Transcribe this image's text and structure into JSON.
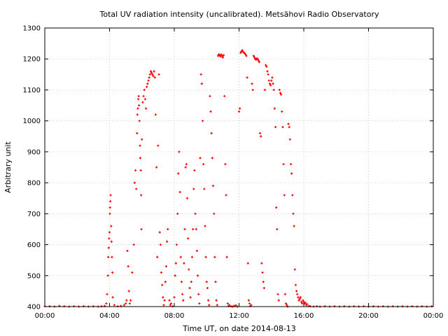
{
  "chart_data": {
    "type": "scatter",
    "title": "Total UV radiation intensity (uncalibrated). Metsähovi Radio Observatory",
    "xlabel": "Time UT, on date 2014-08-13",
    "ylabel": "Arbitrary unit",
    "xlim": [
      0,
      24
    ],
    "ylim": [
      400,
      1300
    ],
    "grid": true,
    "legend": "none",
    "marker_color": "#ff0000",
    "x_ticks": [
      {
        "value": 0,
        "label": "00:00"
      },
      {
        "value": 4,
        "label": "04:00"
      },
      {
        "value": 8,
        "label": "08:00"
      },
      {
        "value": 12,
        "label": "12:00"
      },
      {
        "value": 16,
        "label": "16:00"
      },
      {
        "value": 20,
        "label": "20:00"
      },
      {
        "value": 24,
        "label": "00:00"
      }
    ],
    "y_ticks": [
      {
        "value": 400,
        "label": "400"
      },
      {
        "value": 500,
        "label": "500"
      },
      {
        "value": 600,
        "label": "600"
      },
      {
        "value": 700,
        "label": "700"
      },
      {
        "value": 800,
        "label": "800"
      },
      {
        "value": 900,
        "label": "900"
      },
      {
        "value": 1000,
        "label": "1000"
      },
      {
        "value": 1100,
        "label": "1100"
      },
      {
        "value": 1200,
        "label": "1200"
      },
      {
        "value": 1300,
        "label": "1300"
      }
    ],
    "points": [
      [
        0.0,
        401
      ],
      [
        0.3,
        401
      ],
      [
        0.6,
        400
      ],
      [
        0.9,
        402
      ],
      [
        1.2,
        401
      ],
      [
        1.5,
        400
      ],
      [
        1.8,
        401
      ],
      [
        2.1,
        400
      ],
      [
        2.4,
        401
      ],
      [
        2.7,
        400
      ],
      [
        3.0,
        401
      ],
      [
        3.3,
        400
      ],
      [
        3.5,
        401
      ],
      [
        3.7,
        402
      ],
      [
        3.8,
        410
      ],
      [
        3.85,
        440
      ],
      [
        3.9,
        500
      ],
      [
        3.92,
        560
      ],
      [
        3.95,
        590
      ],
      [
        3.97,
        620
      ],
      [
        4.0,
        640
      ],
      [
        4.02,
        700
      ],
      [
        4.03,
        720
      ],
      [
        4.05,
        740
      ],
      [
        4.07,
        760
      ],
      [
        4.1,
        660
      ],
      [
        4.12,
        610
      ],
      [
        4.15,
        560
      ],
      [
        4.18,
        510
      ],
      [
        4.2,
        430
      ],
      [
        4.3,
        405
      ],
      [
        4.5,
        401
      ],
      [
        4.7,
        402
      ],
      [
        4.9,
        405
      ],
      [
        5.0,
        410
      ],
      [
        5.05,
        420
      ],
      [
        5.1,
        580
      ],
      [
        5.15,
        530
      ],
      [
        5.2,
        450
      ],
      [
        5.25,
        410
      ],
      [
        5.3,
        420
      ],
      [
        5.4,
        510
      ],
      [
        5.5,
        600
      ],
      [
        5.55,
        800
      ],
      [
        5.6,
        840
      ],
      [
        5.65,
        780
      ],
      [
        5.7,
        960
      ],
      [
        5.72,
        1020
      ],
      [
        5.75,
        1040
      ],
      [
        5.78,
        1070
      ],
      [
        5.8,
        1080
      ],
      [
        5.82,
        1050
      ],
      [
        5.85,
        1000
      ],
      [
        5.88,
        920
      ],
      [
        5.9,
        880
      ],
      [
        5.93,
        840
      ],
      [
        5.95,
        760
      ],
      [
        5.97,
        650
      ],
      [
        6.0,
        940
      ],
      [
        6.05,
        1060
      ],
      [
        6.1,
        1080
      ],
      [
        6.15,
        1100
      ],
      [
        6.2,
        1070
      ],
      [
        6.25,
        1040
      ],
      [
        6.3,
        1110
      ],
      [
        6.35,
        1120
      ],
      [
        6.4,
        1130
      ],
      [
        6.45,
        1140
      ],
      [
        6.5,
        1150
      ],
      [
        6.55,
        1160
      ],
      [
        6.6,
        1155
      ],
      [
        6.65,
        1150
      ],
      [
        6.7,
        1145
      ],
      [
        6.75,
        1160
      ],
      [
        6.8,
        1140
      ],
      [
        6.85,
        1020
      ],
      [
        6.9,
        850
      ],
      [
        6.95,
        560
      ],
      [
        7.0,
        920
      ],
      [
        7.05,
        1150
      ],
      [
        7.1,
        640
      ],
      [
        7.15,
        600
      ],
      [
        7.2,
        510
      ],
      [
        7.25,
        470
      ],
      [
        7.3,
        430
      ],
      [
        7.35,
        405
      ],
      [
        7.4,
        420
      ],
      [
        7.45,
        480
      ],
      [
        7.5,
        530
      ],
      [
        7.55,
        610
      ],
      [
        7.6,
        650
      ],
      [
        7.7,
        420
      ],
      [
        7.75,
        405
      ],
      [
        7.8,
        410
      ],
      [
        7.9,
        401
      ],
      [
        8.0,
        430
      ],
      [
        8.05,
        500
      ],
      [
        8.1,
        540
      ],
      [
        8.15,
        600
      ],
      [
        8.2,
        700
      ],
      [
        8.25,
        830
      ],
      [
        8.3,
        900
      ],
      [
        8.35,
        770
      ],
      [
        8.4,
        560
      ],
      [
        8.45,
        480
      ],
      [
        8.5,
        440
      ],
      [
        8.55,
        420
      ],
      [
        8.6,
        540
      ],
      [
        8.65,
        650
      ],
      [
        8.7,
        850
      ],
      [
        8.75,
        860
      ],
      [
        8.8,
        750
      ],
      [
        8.85,
        620
      ],
      [
        8.9,
        520
      ],
      [
        8.95,
        460
      ],
      [
        9.0,
        430
      ],
      [
        9.05,
        480
      ],
      [
        9.1,
        560
      ],
      [
        9.15,
        650
      ],
      [
        9.2,
        780
      ],
      [
        9.25,
        840
      ],
      [
        9.3,
        700
      ],
      [
        9.35,
        650
      ],
      [
        9.4,
        580
      ],
      [
        9.45,
        500
      ],
      [
        9.5,
        440
      ],
      [
        9.55,
        410
      ],
      [
        9.6,
        880
      ],
      [
        9.65,
        1150
      ],
      [
        9.7,
        1120
      ],
      [
        9.75,
        1000
      ],
      [
        9.8,
        860
      ],
      [
        9.85,
        780
      ],
      [
        9.9,
        660
      ],
      [
        9.95,
        560
      ],
      [
        10.0,
        480
      ],
      [
        10.05,
        460
      ],
      [
        10.1,
        420
      ],
      [
        10.15,
        405
      ],
      [
        10.2,
        1080
      ],
      [
        10.25,
        1030
      ],
      [
        10.3,
        960
      ],
      [
        10.35,
        880
      ],
      [
        10.4,
        790
      ],
      [
        10.45,
        700
      ],
      [
        10.5,
        560
      ],
      [
        10.55,
        480
      ],
      [
        10.6,
        420
      ],
      [
        10.65,
        405
      ],
      [
        10.7,
        1210
      ],
      [
        10.75,
        1215
      ],
      [
        10.8,
        1212
      ],
      [
        10.85,
        1208
      ],
      [
        10.9,
        1214
      ],
      [
        10.95,
        1210
      ],
      [
        11.0,
        1205
      ],
      [
        11.05,
        1212
      ],
      [
        11.1,
        1080
      ],
      [
        11.15,
        860
      ],
      [
        11.2,
        760
      ],
      [
        11.25,
        560
      ],
      [
        11.3,
        410
      ],
      [
        11.35,
        402
      ],
      [
        11.4,
        405
      ],
      [
        11.5,
        401
      ],
      [
        11.6,
        400
      ],
      [
        11.7,
        402
      ],
      [
        11.8,
        404
      ],
      [
        11.9,
        400
      ],
      [
        12.0,
        1030
      ],
      [
        12.05,
        1040
      ],
      [
        12.1,
        1220
      ],
      [
        12.15,
        1225
      ],
      [
        12.2,
        1228
      ],
      [
        12.25,
        1223
      ],
      [
        12.3,
        1220
      ],
      [
        12.35,
        1218
      ],
      [
        12.4,
        1215
      ],
      [
        12.45,
        1210
      ],
      [
        12.5,
        1140
      ],
      [
        12.55,
        540
      ],
      [
        12.6,
        420
      ],
      [
        12.65,
        410
      ],
      [
        12.7,
        402
      ],
      [
        12.75,
        405
      ],
      [
        12.8,
        1120
      ],
      [
        12.85,
        1100
      ],
      [
        12.9,
        1210
      ],
      [
        12.95,
        1205
      ],
      [
        13.0,
        1200
      ],
      [
        13.05,
        1198
      ],
      [
        13.1,
        1202
      ],
      [
        13.15,
        1200
      ],
      [
        13.2,
        1195
      ],
      [
        13.25,
        1190
      ],
      [
        13.3,
        960
      ],
      [
        13.35,
        950
      ],
      [
        13.4,
        540
      ],
      [
        13.45,
        510
      ],
      [
        13.5,
        480
      ],
      [
        13.55,
        460
      ],
      [
        13.6,
        1100
      ],
      [
        13.65,
        1180
      ],
      [
        13.7,
        1175
      ],
      [
        13.75,
        1160
      ],
      [
        13.8,
        1150
      ],
      [
        13.85,
        1130
      ],
      [
        13.9,
        1120
      ],
      [
        13.95,
        1115
      ],
      [
        14.0,
        1130
      ],
      [
        14.05,
        1140
      ],
      [
        14.1,
        1120
      ],
      [
        14.15,
        1100
      ],
      [
        14.2,
        1040
      ],
      [
        14.25,
        980
      ],
      [
        14.3,
        720
      ],
      [
        14.35,
        650
      ],
      [
        14.4,
        440
      ],
      [
        14.45,
        420
      ],
      [
        14.5,
        1100
      ],
      [
        14.55,
        1090
      ],
      [
        14.6,
        1085
      ],
      [
        14.65,
        1030
      ],
      [
        14.7,
        980
      ],
      [
        14.75,
        860
      ],
      [
        14.8,
        760
      ],
      [
        14.85,
        440
      ],
      [
        14.9,
        410
      ],
      [
        14.95,
        405
      ],
      [
        15.0,
        400
      ],
      [
        15.05,
        990
      ],
      [
        15.1,
        980
      ],
      [
        15.15,
        940
      ],
      [
        15.2,
        860
      ],
      [
        15.25,
        830
      ],
      [
        15.3,
        760
      ],
      [
        15.35,
        700
      ],
      [
        15.4,
        660
      ],
      [
        15.45,
        520
      ],
      [
        15.5,
        470
      ],
      [
        15.55,
        450
      ],
      [
        15.6,
        440
      ],
      [
        15.65,
        430
      ],
      [
        15.7,
        420
      ],
      [
        15.75,
        425
      ],
      [
        15.8,
        430
      ],
      [
        15.85,
        415
      ],
      [
        15.9,
        410
      ],
      [
        15.95,
        420
      ],
      [
        16.0,
        415
      ],
      [
        16.05,
        410
      ],
      [
        16.1,
        412
      ],
      [
        16.15,
        405
      ],
      [
        16.2,
        408
      ],
      [
        16.3,
        402
      ],
      [
        16.4,
        401
      ],
      [
        16.6,
        400
      ],
      [
        16.8,
        401
      ],
      [
        17.0,
        400
      ],
      [
        17.3,
        401
      ],
      [
        17.6,
        400
      ],
      [
        17.9,
        401
      ],
      [
        18.2,
        400
      ],
      [
        18.5,
        401
      ],
      [
        18.8,
        400
      ],
      [
        19.1,
        401
      ],
      [
        19.4,
        400
      ],
      [
        19.7,
        401
      ],
      [
        20.0,
        400
      ],
      [
        20.3,
        401
      ],
      [
        20.6,
        400
      ],
      [
        20.9,
        401
      ],
      [
        21.2,
        400
      ],
      [
        21.5,
        401
      ],
      [
        21.8,
        400
      ],
      [
        22.1,
        401
      ],
      [
        22.4,
        400
      ],
      [
        22.7,
        401
      ],
      [
        23.0,
        400
      ],
      [
        23.3,
        401
      ],
      [
        23.6,
        400
      ],
      [
        23.9,
        401
      ]
    ]
  }
}
